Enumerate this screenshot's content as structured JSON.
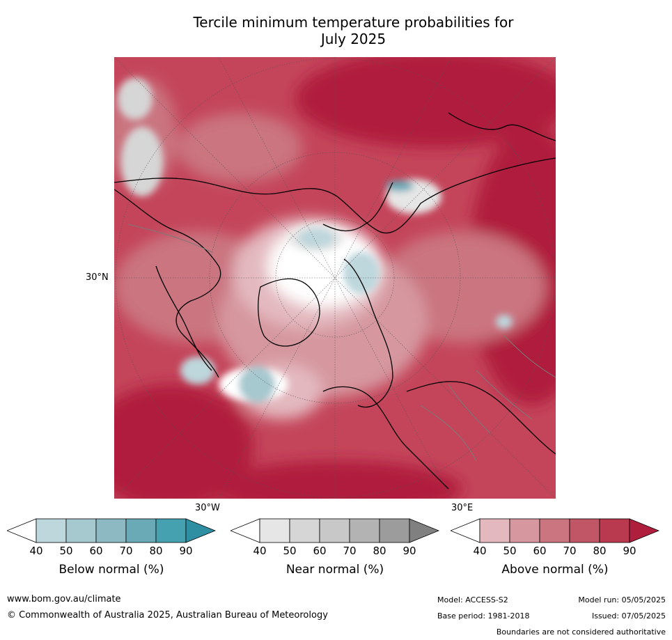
{
  "title_line1": "Tercile minimum temperature probabilities for",
  "title_line2": "July 2025",
  "graticule": {
    "lat_label": "30°N",
    "lon_label_west": "30°W",
    "lon_label_east": "30°E"
  },
  "colorbars": [
    {
      "id": "below",
      "title": "Below normal (%)",
      "ticks": [
        "40",
        "50",
        "60",
        "70",
        "80",
        "90"
      ],
      "colors": [
        "#ffffff",
        "#bdd7dd",
        "#a6c8cf",
        "#8cb9c2",
        "#6aa9b6",
        "#45a0b0",
        "#2e8fa3"
      ]
    },
    {
      "id": "near",
      "title": "Near normal (%)",
      "ticks": [
        "40",
        "50",
        "60",
        "70",
        "80",
        "90"
      ],
      "colors": [
        "#ffffff",
        "#e6e6e6",
        "#d6d6d6",
        "#c8c8c8",
        "#b3b3b3",
        "#9c9c9c",
        "#808080"
      ]
    },
    {
      "id": "above",
      "title": "Above normal (%)",
      "ticks": [
        "40",
        "50",
        "60",
        "70",
        "80",
        "90"
      ],
      "colors": [
        "#ffffff",
        "#e3b9bf",
        "#d6979f",
        "#ca7580",
        "#c15766",
        "#b93a4e",
        "#b01e3e"
      ]
    }
  ],
  "footer": {
    "website": "www.bom.gov.au/climate",
    "copyright": "© Commonwealth of Australia 2025, Australian Bureau of Meteorology",
    "model": "Model: ACCESS-S2",
    "base_period": "Base period: 1981-2018",
    "model_run": "Model run: 05/05/2025",
    "issued": "Issued: 07/05/2025",
    "disclaimer": "Boundaries are not considered authoritative"
  }
}
